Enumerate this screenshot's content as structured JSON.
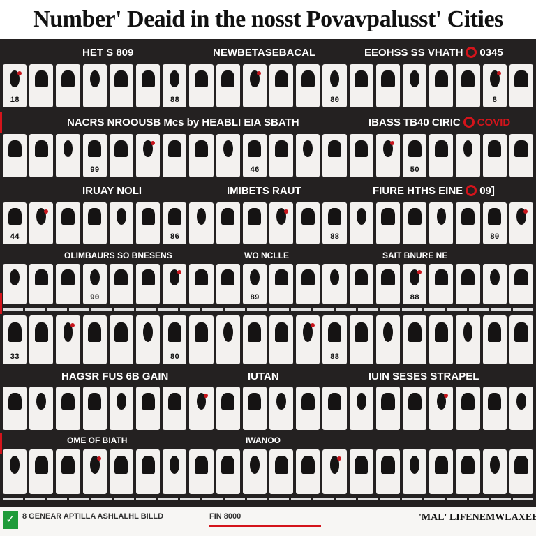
{
  "title": "Number' Deaid in  the nosst Povavpalusst' Cities",
  "colors": {
    "accent": "#d4141b",
    "background": "#242121",
    "card": "#f3f1ef",
    "footer_check": "#1f9b3a"
  },
  "sections": [
    {
      "headers": [
        "HET S 809",
        "NEWBETASEBACAL",
        "EEOHSS SS VHATH",
        "0345"
      ]
    },
    {
      "headers": [
        "NACRS NROOUSB Mcs by HEABLI EIA SBATH",
        "",
        "IBASS TB40 CIRIC",
        "COVID"
      ]
    },
    {
      "headers": [
        "IRUAY NOLI",
        "IMIBETS RAUT",
        "FIURE HTHS EINE",
        "09]"
      ]
    },
    {
      "headers": [
        "OLIMBAURS SO BNESENS",
        "WO NCLLE",
        "SAIT BNURE NE",
        ""
      ]
    },
    {
      "headers": [
        "HAGSR FUS 6B GAIN",
        "IUTAN",
        "IUIN SESES STRAPEL",
        ""
      ]
    },
    {
      "headers": [
        "OME OF BIATH",
        "IWANOO",
        "",
        ""
      ]
    }
  ],
  "card_numbers": [
    "18",
    "88",
    "80",
    "8",
    "99",
    "46",
    "50",
    "44",
    "86",
    "88",
    "80",
    "90",
    "89",
    "88",
    "33",
    "80",
    "88"
  ],
  "footer": {
    "left_text": "8 GENEAR APTILLA ASHLALHL BILLD",
    "mid_text": "FIN 8000",
    "right_text": "'MAL' LIFENEMWLAXEELLE",
    "check_icon": "check-icon"
  }
}
